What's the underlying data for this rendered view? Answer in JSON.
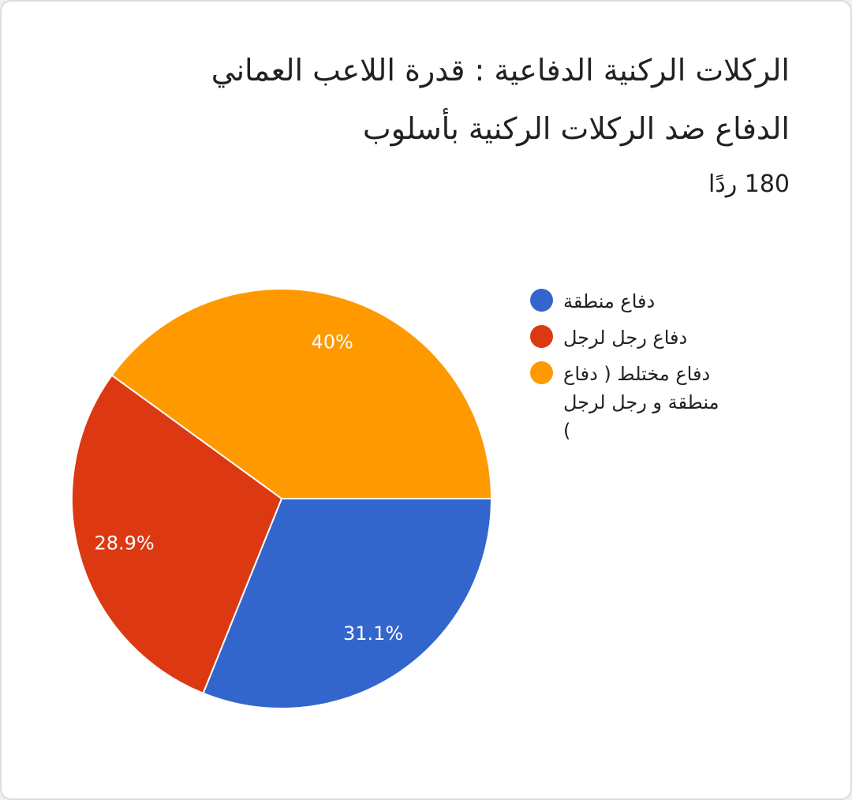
{
  "chart_data": {
    "type": "pie",
    "title": "الركلات الركنية الدفاعية : قدرة اللاعب العماني الدفاع ضد الركلات الركنية بأسلوب",
    "subtitle": "180 ردًا",
    "categories": [
      "دفاع منطقة",
      "دفاع رجل لرجل",
      "دفاع مختلط ( دفاع منطقة و رجل لرجل )"
    ],
    "values": [
      31.1,
      28.9,
      40
    ],
    "value_labels": [
      "31.1%",
      "28.9%",
      "40%"
    ],
    "colors": [
      "#3366cc",
      "#dc3912",
      "#ff9900"
    ],
    "legend": "right"
  }
}
